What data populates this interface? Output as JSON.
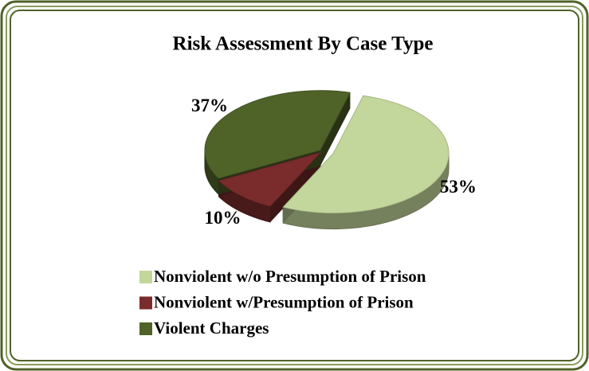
{
  "chart_data": {
    "type": "pie",
    "title": "Risk Assessment By Case Type",
    "categories": [
      "Nonviolent w/o Presumption of Prison",
      "Nonviolent w/Presumption of Prison",
      "Violent Charges"
    ],
    "values": [
      53,
      10,
      37
    ],
    "value_labels": [
      "53%",
      "10%",
      "37%"
    ],
    "colors": [
      "#c3d69b",
      "#7a2b2b",
      "#4f6228"
    ],
    "legend": "bottom"
  }
}
